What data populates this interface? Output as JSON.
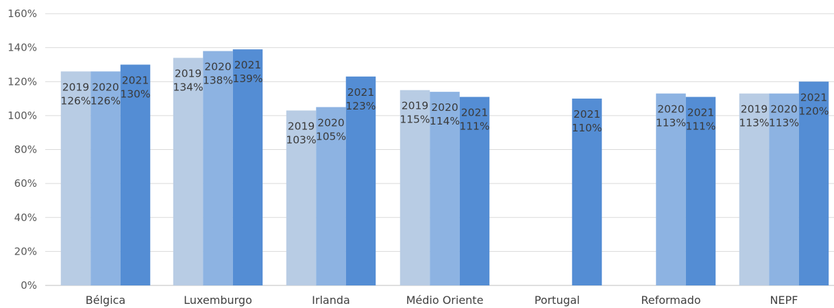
{
  "chart_data": {
    "type": "bar",
    "title": "",
    "xlabel": "",
    "ylabel": "",
    "ylim": [
      0,
      160
    ],
    "y_tick_step": 20,
    "y_tick_format": "percent",
    "grid": true,
    "legend": "none",
    "categories": [
      "Bélgica",
      "Luxemburgo",
      "Irlanda",
      "Médio Oriente",
      "Portugal",
      "Reformado",
      "NEPF"
    ],
    "series": [
      {
        "label_prefix": "2019",
        "color": "#b8cce4",
        "values": [
          126,
          134,
          103,
          115,
          null,
          null,
          113
        ]
      },
      {
        "label_prefix": "2020",
        "color": "#8db3e2",
        "values": [
          126,
          138,
          105,
          114,
          null,
          113,
          113
        ]
      },
      {
        "label_prefix": "2021",
        "color": "#548dd4",
        "values": [
          130,
          139,
          123,
          111,
          110,
          111,
          120
        ]
      }
    ]
  }
}
